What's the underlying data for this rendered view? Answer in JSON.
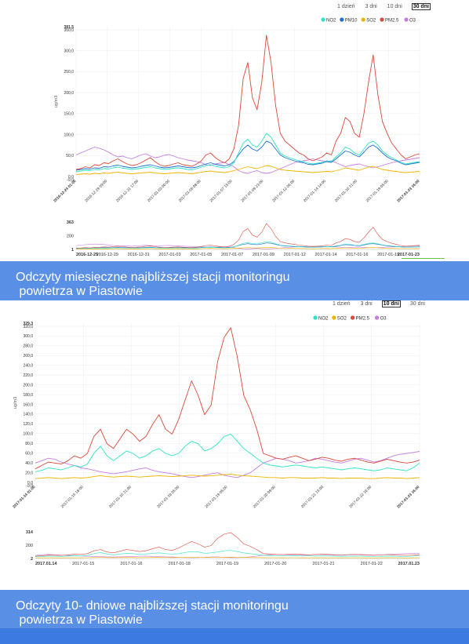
{
  "chart_data": [
    {
      "type": "line",
      "range_buttons": [
        "1 dzień",
        "3 dni",
        "10 dni",
        "30 dni"
      ],
      "selected_range": "30 dni",
      "legend": [
        "NO2",
        "PM10",
        "SO2",
        "PM2.5",
        "O3"
      ],
      "ylabel": "ug/m3",
      "ylim": [
        0,
        381.5
      ],
      "yticks": [
        "381,5",
        "350,0",
        "300,0",
        "250,0",
        "200,0",
        "150,0",
        "100,0",
        "50,0",
        "0,0",
        "-9,0"
      ],
      "xticks": [
        "2016-12-24 01:00",
        "2016-12-29 09:00",
        "2016-12-31 17:00",
        "2017-01-03 00:00",
        "2017-01-05 08:00",
        "2017-01-07 15:00",
        "2017-01-09 23:00",
        "2017-01-12 06:00",
        "2017-01-14 14:00",
        "2017-01-16 21:00",
        "2017-01-19 05:00",
        "2017-01-23 16:00"
      ],
      "navigator": {
        "ymax_label": "363",
        "ymid_label": "200",
        "ymin_label": "1",
        "xticks": [
          "2016-12-25",
          "2016-12-29",
          "2016-12-31",
          "2017-01-03",
          "2017-01-05",
          "2017-01-07",
          "2017-01-09",
          "2017-01-12",
          "2017-01-14",
          "2017-01-16",
          "2017-01-19",
          "2017-01-23"
        ]
      },
      "series": [
        {
          "name": "PM2.5",
          "color": "#d94a3a",
          "values": [
            18,
            20,
            25,
            22,
            30,
            28,
            35,
            33,
            40,
            45,
            38,
            32,
            28,
            30,
            35,
            42,
            48,
            38,
            30,
            26,
            28,
            32,
            35,
            30,
            28,
            26,
            32,
            40,
            55,
            60,
            48,
            40,
            35,
            45,
            70,
            130,
            250,
            290,
            200,
            170,
            240,
            360,
            290,
            180,
            110,
            90,
            80,
            70,
            60,
            55,
            45,
            40,
            45,
            50,
            60,
            55,
            90,
            110,
            150,
            140,
            110,
            100,
            160,
            240,
            310,
            210,
            140,
            110,
            85,
            70,
            55,
            45,
            50,
            55,
            58
          ]
        },
        {
          "name": "NO2",
          "color": "#2ee3c5",
          "values": [
            12,
            14,
            16,
            15,
            18,
            17,
            20,
            19,
            22,
            24,
            21,
            20,
            18,
            19,
            21,
            23,
            25,
            22,
            20,
            18,
            19,
            21,
            22,
            20,
            18,
            17,
            20,
            24,
            28,
            30,
            26,
            24,
            22,
            25,
            35,
            60,
            85,
            95,
            80,
            75,
            90,
            110,
            100,
            80,
            60,
            52,
            48,
            44,
            40,
            38,
            34,
            32,
            34,
            36,
            40,
            38,
            50,
            60,
            75,
            70,
            60,
            55,
            70,
            85,
            90,
            80,
            65,
            55,
            48,
            42,
            36,
            32,
            34,
            36,
            38
          ]
        },
        {
          "name": "PM10",
          "color": "#1f6fd1",
          "values": [
            16,
            18,
            20,
            19,
            22,
            21,
            25,
            24,
            27,
            29,
            26,
            24,
            22,
            23,
            26,
            28,
            30,
            27,
            24,
            22,
            23,
            25,
            27,
            25,
            23,
            22,
            24,
            28,
            32,
            35,
            31,
            29,
            27,
            30,
            38,
            55,
            70,
            80,
            70,
            65,
            75,
            90,
            85,
            70,
            55,
            48,
            44,
            40,
            37,
            35,
            31,
            30,
            32,
            34,
            38,
            36,
            45,
            55,
            65,
            62,
            55,
            50,
            62,
            75,
            80,
            72,
            60,
            50,
            44,
            40,
            34,
            30,
            32,
            34,
            36
          ]
        },
        {
          "name": "SO2",
          "color": "#f0b400",
          "values": [
            5,
            6,
            7,
            6,
            8,
            7,
            9,
            8,
            10,
            11,
            9,
            8,
            7,
            8,
            9,
            10,
            11,
            9,
            8,
            7,
            8,
            9,
            10,
            9,
            8,
            7,
            9,
            11,
            13,
            14,
            12,
            11,
            10,
            12,
            15,
            18,
            22,
            25,
            22,
            20,
            24,
            28,
            26,
            22,
            18,
            16,
            15,
            14,
            13,
            12,
            11,
            10,
            11,
            12,
            13,
            12,
            15,
            18,
            22,
            20,
            18,
            16,
            20,
            24,
            26,
            22,
            18,
            16,
            14,
            13,
            11,
            10,
            11,
            12,
            13
          ]
        },
        {
          "name": "O3",
          "color": "#c77ce0",
          "values": [
            55,
            60,
            65,
            70,
            75,
            72,
            68,
            62,
            55,
            50,
            52,
            48,
            45,
            50,
            55,
            58,
            52,
            48,
            50,
            54,
            56,
            52,
            48,
            45,
            42,
            40,
            38,
            35,
            30,
            28,
            32,
            34,
            36,
            30,
            25,
            15,
            10,
            8,
            12,
            15,
            10,
            8,
            10,
            15,
            20,
            25,
            30,
            35,
            38,
            40,
            42,
            45,
            42,
            40,
            38,
            40,
            35,
            30,
            25,
            28,
            30,
            32,
            28,
            25,
            22,
            25,
            28,
            32,
            35,
            38,
            40,
            42,
            44,
            46,
            48
          ]
        }
      ]
    },
    {
      "type": "line",
      "range_buttons": [
        "1 dzień",
        "3 dni",
        "10 dni",
        "30 dni"
      ],
      "selected_range": "10 dni",
      "legend": [
        "NO2",
        "SO2",
        "PM2.5",
        "O3"
      ],
      "ylabel": "ug/m3",
      "ylim": [
        0,
        329.3
      ],
      "yticks": [
        "329,3",
        "320,0",
        "300,0",
        "280,0",
        "260,0",
        "240,0",
        "220,0",
        "200,0",
        "180,0",
        "160,0",
        "140,0",
        "120,0",
        "100,0",
        "80,0",
        "60,0",
        "40,0",
        "20,0",
        "0,0",
        "-9,0"
      ],
      "xticks": [
        "2017-01-14 01:00",
        "2017-01-15 18:00",
        "2017-01-16 21:00",
        "2017-01-18 05:00",
        "2017-01-19 05:00",
        "2017-01-20 09:00",
        "2017-01-21 13:00",
        "2017-01-22 16:00",
        "2017-01-23 16:00"
      ],
      "navigator": {
        "ymax_label": "314",
        "ymid_label": "200",
        "ymin_label": "2",
        "xticks": [
          "2017.01.14",
          "2017-01-15",
          "2017-01-16",
          "2017-01-18",
          "2017-01-19",
          "2017-01-20",
          "2017-01-21",
          "2017-01-22",
          "2017.01.23"
        ]
      },
      "series": [
        {
          "name": "PM2.5",
          "color": "#d94a3a",
          "values": [
            28,
            35,
            42,
            40,
            38,
            45,
            55,
            50,
            60,
            95,
            110,
            80,
            70,
            90,
            110,
            100,
            85,
            95,
            120,
            140,
            110,
            100,
            130,
            170,
            210,
            180,
            140,
            160,
            250,
            300,
            320,
            260,
            180,
            150,
            110,
            60,
            55,
            50,
            48,
            52,
            55,
            50,
            45,
            48,
            52,
            50,
            46,
            44,
            48,
            50,
            46,
            42,
            40,
            44,
            48,
            45,
            42,
            40,
            42,
            46
          ]
        },
        {
          "name": "NO2",
          "color": "#2ee3c5",
          "values": [
            22,
            25,
            30,
            28,
            26,
            30,
            35,
            32,
            38,
            60,
            75,
            55,
            45,
            55,
            65,
            60,
            50,
            55,
            65,
            70,
            60,
            55,
            60,
            75,
            85,
            80,
            65,
            70,
            80,
            95,
            100,
            85,
            70,
            60,
            50,
            40,
            36,
            34,
            32,
            34,
            36,
            34,
            32,
            30,
            32,
            30,
            28,
            26,
            28,
            30,
            28,
            26,
            24,
            26,
            30,
            28,
            26,
            24,
            30,
            40
          ]
        },
        {
          "name": "SO2",
          "color": "#f0b400",
          "values": [
            8,
            9,
            10,
            9,
            8,
            9,
            10,
            9,
            10,
            12,
            14,
            12,
            11,
            12,
            13,
            12,
            11,
            12,
            13,
            14,
            13,
            12,
            13,
            14,
            15,
            14,
            13,
            14,
            15,
            16,
            17,
            15,
            14,
            13,
            12,
            11,
            10,
            10,
            9,
            10,
            10,
            9,
            9,
            9,
            10,
            9,
            9,
            8,
            9,
            9,
            9,
            8,
            8,
            9,
            10,
            9,
            9,
            8,
            9,
            10
          ]
        },
        {
          "name": "O3",
          "color": "#c77ce0",
          "values": [
            40,
            45,
            50,
            48,
            42,
            38,
            35,
            30,
            28,
            25,
            22,
            20,
            18,
            20,
            22,
            25,
            28,
            30,
            25,
            22,
            20,
            18,
            15,
            12,
            10,
            12,
            15,
            18,
            20,
            15,
            12,
            10,
            15,
            20,
            30,
            40,
            45,
            50,
            48,
            45,
            40,
            42,
            45,
            50,
            48,
            45,
            42,
            40,
            44,
            48,
            50,
            46,
            42,
            45,
            50,
            55,
            58,
            60,
            62,
            64
          ]
        }
      ]
    }
  ],
  "banners": [
    {
      "line1": "Odczyty miesięczne najbliższej  stacji monitoringu",
      "line2": " powietrza w Piastowie"
    },
    {
      "line1": "Odczyty 10- dniowe najbliższej  stacji monitoringu",
      "line2": " powietrza w Piastowie"
    }
  ]
}
